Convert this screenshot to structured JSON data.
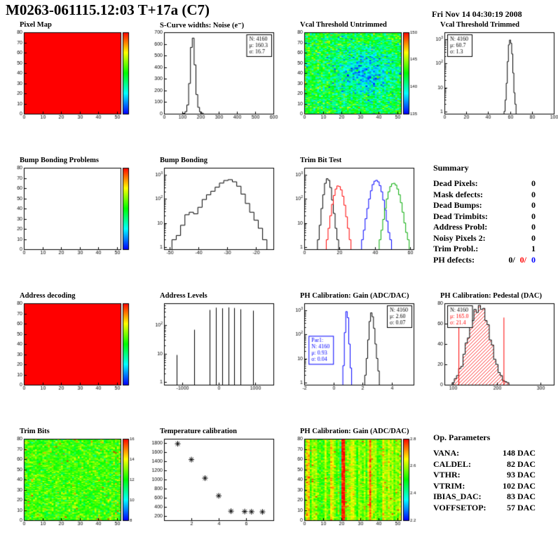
{
  "header": {
    "title": "M0263-061115.12:03 T+17a (C7)",
    "date": "Fri Nov 14 04:30:19 2008"
  },
  "summary": {
    "title": "Summary",
    "rows": [
      {
        "label": "Dead Pixels:",
        "value": "0"
      },
      {
        "label": "Mask defects:",
        "value": "0"
      },
      {
        "label": "Dead Bumps:",
        "value": "0"
      },
      {
        "label": "Dead Trimbits:",
        "value": "0"
      },
      {
        "label": "Address Probl:",
        "value": "0"
      },
      {
        "label": "Noisy Pixels 2:",
        "value": "0"
      },
      {
        "label": "Trim Probl.:",
        "value": "1"
      }
    ],
    "ph_defects": {
      "label": "PH defects:",
      "values": [
        {
          "text": "0/",
          "color": "#000000"
        },
        {
          "text": "0/",
          "color": "#ff0000"
        },
        {
          "text": "0",
          "color": "#0000ff"
        }
      ]
    }
  },
  "op_parameters": {
    "title": "Op. Parameters",
    "rows": [
      {
        "label": "VANA:",
        "value": "148 DAC"
      },
      {
        "label": "CALDEL:",
        "value": "82 DAC"
      },
      {
        "label": "VTHR:",
        "value": "93 DAC"
      },
      {
        "label": "VTRIM:",
        "value": "102 DAC"
      },
      {
        "label": "IBIAS_DAC:",
        "value": "83 DAC"
      },
      {
        "label": "VOFFSETOP:",
        "value": "57 DAC"
      }
    ]
  },
  "chart_data": [
    {
      "title": "Pixel Map",
      "type": "heatmap",
      "xlim": [
        0,
        52
      ],
      "ylim": [
        0,
        80
      ],
      "x_ticks": [
        0,
        10,
        20,
        30,
        40,
        50
      ],
      "y_ticks": [
        0,
        10,
        20,
        30,
        40,
        50,
        60,
        70,
        80
      ],
      "heat": {
        "mode": "flat",
        "color": "#ff0000"
      },
      "colorbar": {
        "labels": []
      }
    },
    {
      "title": "S-Curve widths: Noise (e⁻)",
      "type": "hist",
      "xlim": [
        0,
        600
      ],
      "ylim": [
        0,
        700
      ],
      "x_ticks": [
        0,
        100,
        200,
        300,
        400,
        500,
        600
      ],
      "y_ticks": [
        0,
        100,
        200,
        300,
        400,
        500,
        600,
        700
      ],
      "color": "#000000",
      "pairs": [
        [
          110,
          3
        ],
        [
          120,
          18
        ],
        [
          130,
          75
        ],
        [
          140,
          260
        ],
        [
          150,
          570
        ],
        [
          160,
          650
        ],
        [
          170,
          420
        ],
        [
          180,
          165
        ],
        [
          190,
          55
        ],
        [
          200,
          16
        ],
        [
          210,
          5
        ]
      ],
      "stats_boxes": [
        {
          "pos": "tr",
          "lines": [
            {
              "t": "N: 4160"
            },
            {
              "t": "μ: 160.3"
            },
            {
              "t": "σ: 16.7"
            }
          ]
        }
      ]
    },
    {
      "title": "Vcal Threshold Untrimmed",
      "type": "heatmap",
      "xlim": [
        0,
        52
      ],
      "ylim": [
        0,
        80
      ],
      "x_ticks": [
        0,
        10,
        20,
        30,
        40,
        50
      ],
      "y_ticks": [
        0,
        10,
        20,
        30,
        40,
        50,
        60,
        70,
        80
      ],
      "heat": {
        "mode": "noise",
        "base": 0.47,
        "sigma": 0.12,
        "seed": 7,
        "speckle": 0.01,
        "blob": {
          "cx": 0.63,
          "cy": 0.5,
          "r": 0.22,
          "amp": -0.25
        }
      },
      "colorbar": {
        "labels": [
          135,
          140,
          145,
          150
        ]
      }
    },
    {
      "title": "Vcal Threshold Trimmed",
      "type": "hist",
      "xlim": [
        0,
        100
      ],
      "ylog": true,
      "ylim": [
        0.8,
        2000
      ],
      "x_ticks": [
        0,
        20,
        40,
        60,
        80,
        100
      ],
      "color": "#000000",
      "pairs": [
        [
          55,
          1
        ],
        [
          56,
          3
        ],
        [
          57,
          15
        ],
        [
          58,
          120
        ],
        [
          59,
          600
        ],
        [
          60,
          950
        ],
        [
          61,
          700
        ],
        [
          62,
          250
        ],
        [
          63,
          40
        ],
        [
          64,
          6
        ],
        [
          65,
          2
        ]
      ],
      "stats_boxes": [
        {
          "pos": "tl",
          "lines": [
            {
              "t": "N: 4160"
            },
            {
              "t": "μ: 60.7"
            },
            {
              "t": "σ: 1.3"
            }
          ]
        }
      ]
    },
    {
      "title": "Bump Bonding Problems",
      "type": "heatmap",
      "xlim": [
        0,
        52
      ],
      "ylim": [
        0,
        80
      ],
      "x_ticks": [
        0,
        10,
        20,
        30,
        40,
        50
      ],
      "y_ticks": [
        0,
        10,
        20,
        30,
        40,
        50,
        60,
        70,
        80
      ],
      "heat": {
        "mode": "empty"
      },
      "colorbar": {
        "labels": []
      }
    },
    {
      "title": "Bump Bonding",
      "type": "hist",
      "xlim": [
        -52,
        -14
      ],
      "ylog": true,
      "ylim": [
        0.8,
        2000
      ],
      "x_ticks": [
        -50,
        -40,
        -30,
        -20
      ],
      "color": "#000000",
      "pairs": [
        [
          -48.5,
          2
        ],
        [
          -47,
          3
        ],
        [
          -45.5,
          8
        ],
        [
          -44,
          22
        ],
        [
          -42.5,
          28
        ],
        [
          -41,
          24
        ],
        [
          -39.5,
          45
        ],
        [
          -38,
          95
        ],
        [
          -36.5,
          150
        ],
        [
          -35,
          210
        ],
        [
          -33.5,
          310
        ],
        [
          -32,
          460
        ],
        [
          -30.5,
          590
        ],
        [
          -29,
          640
        ],
        [
          -27.5,
          520
        ],
        [
          -26,
          340
        ],
        [
          -24.5,
          160
        ],
        [
          -23,
          65
        ],
        [
          -21.5,
          28
        ],
        [
          -20,
          13
        ],
        [
          -18.5,
          6
        ],
        [
          -17,
          2
        ]
      ]
    },
    {
      "title": "Trim Bit Test",
      "type": "multi_hist",
      "xlim": [
        0,
        62
      ],
      "ylog": true,
      "ylim": [
        0.8,
        2000
      ],
      "x_ticks": [
        0,
        20,
        40,
        60
      ],
      "series": [
        {
          "color": "#000000",
          "pairs": [
            [
              8,
              2
            ],
            [
              9,
              8
            ],
            [
              10,
              40
            ],
            [
              11,
              150
            ],
            [
              12,
              450
            ],
            [
              13,
              700
            ],
            [
              14,
              600
            ],
            [
              15,
              300
            ],
            [
              16,
              90
            ],
            [
              17,
              25
            ],
            [
              18,
              6
            ],
            [
              19,
              2
            ]
          ]
        },
        {
          "color": "#ff0000",
          "pairs": [
            [
              13,
              2
            ],
            [
              14,
              6
            ],
            [
              15,
              20
            ],
            [
              16,
              60
            ],
            [
              17,
              140
            ],
            [
              18,
              260
            ],
            [
              19,
              350
            ],
            [
              20,
              330
            ],
            [
              21,
              240
            ],
            [
              22,
              130
            ],
            [
              23,
              55
            ],
            [
              24,
              18
            ],
            [
              25,
              6
            ],
            [
              26,
              2
            ]
          ]
        },
        {
          "color": "#0000ff",
          "pairs": [
            [
              33,
              2
            ],
            [
              34,
              5
            ],
            [
              35,
              15
            ],
            [
              36,
              40
            ],
            [
              37,
              100
            ],
            [
              38,
              220
            ],
            [
              39,
              400
            ],
            [
              40,
              550
            ],
            [
              41,
              600
            ],
            [
              42,
              520
            ],
            [
              43,
              360
            ],
            [
              44,
              200
            ],
            [
              45,
              90
            ],
            [
              46,
              35
            ],
            [
              47,
              12
            ],
            [
              48,
              4
            ],
            [
              49,
              2
            ]
          ]
        },
        {
          "color": "#00aa00",
          "pairs": [
            [
              43,
              2
            ],
            [
              44,
              5
            ],
            [
              45,
              14
            ],
            [
              46,
              40
            ],
            [
              47,
              100
            ],
            [
              48,
              200
            ],
            [
              49,
              330
            ],
            [
              50,
              430
            ],
            [
              51,
              450
            ],
            [
              52,
              380
            ],
            [
              53,
              260
            ],
            [
              54,
              150
            ],
            [
              55,
              70
            ],
            [
              56,
              28
            ],
            [
              57,
              10
            ],
            [
              58,
              4
            ],
            [
              59,
              2
            ]
          ]
        }
      ]
    },
    {
      "title": "Address decoding",
      "type": "heatmap",
      "xlim": [
        0,
        52
      ],
      "ylim": [
        0,
        80
      ],
      "x_ticks": [
        0,
        10,
        20,
        30,
        40,
        50
      ],
      "y_ticks": [
        0,
        10,
        20,
        30,
        40,
        50,
        60,
        70,
        80
      ],
      "heat": {
        "mode": "flat",
        "color": "#ff0000"
      },
      "colorbar": {
        "labels": []
      }
    },
    {
      "title": "Address Levels",
      "type": "spikes",
      "xlim": [
        -1500,
        1500
      ],
      "ylog": true,
      "ylim": [
        0.8,
        600
      ],
      "x_ticks": [
        -1000,
        0,
        1000
      ],
      "color": "#000000",
      "pairs": [
        [
          -1150,
          9
        ],
        [
          -680,
          70
        ],
        [
          -250,
          350
        ],
        [
          -80,
          420
        ],
        [
          90,
          400
        ],
        [
          260,
          430
        ],
        [
          430,
          410
        ],
        [
          600,
          370
        ],
        [
          950,
          330
        ]
      ]
    },
    {
      "title": "PH Calibration: Gain (ADC/DAC)",
      "type": "multi_hist",
      "xlim": [
        -2,
        5.5
      ],
      "ylog": true,
      "ylim": [
        0.8,
        2000
      ],
      "x_ticks": [
        -2,
        0,
        2,
        4
      ],
      "series": [
        {
          "color": "#000000",
          "pairs": [
            [
              2.2,
              2
            ],
            [
              2.3,
              10
            ],
            [
              2.4,
              60
            ],
            [
              2.5,
              350
            ],
            [
              2.6,
              800
            ],
            [
              2.7,
              550
            ],
            [
              2.8,
              180
            ],
            [
              2.9,
              40
            ],
            [
              3.0,
              10
            ],
            [
              3.1,
              3
            ]
          ]
        },
        {
          "color": "#0000ff",
          "pairs": [
            [
              0.7,
              5
            ],
            [
              0.8,
              120
            ],
            [
              0.9,
              900
            ],
            [
              1.0,
              500
            ],
            [
              1.1,
              40
            ],
            [
              1.2,
              4
            ]
          ]
        }
      ],
      "stats_boxes": [
        {
          "pos": "tr",
          "lines": [
            {
              "t": "N: 4160"
            },
            {
              "t": "μ: 2.60"
            },
            {
              "t": "σ: 0.07"
            }
          ]
        },
        {
          "pos": [
            0.04,
            0.4
          ],
          "border": "#0000ff",
          "lines": [
            {
              "t": "Par1:",
              "c": "#0000ff"
            },
            {
              "t": "N: 4160",
              "c": "#0000ff"
            },
            {
              "t": "μ: 0.93",
              "c": "#0000ff"
            },
            {
              "t": "σ: 0.04",
              "c": "#0000ff"
            }
          ]
        }
      ]
    },
    {
      "title": "PH Calibration: Pedestal (DAC)",
      "type": "hist",
      "xlim": [
        80,
        330
      ],
      "ylim": [
        0,
        80
      ],
      "x_ticks": [
        100,
        200,
        300
      ],
      "y_ticks": [
        0,
        20,
        40,
        60,
        80
      ],
      "color": "#000000",
      "fill": "hatch-red",
      "pairs": [
        [
          100,
          2
        ],
        [
          105,
          6
        ],
        [
          110,
          9
        ],
        [
          115,
          16
        ],
        [
          120,
          18
        ],
        [
          125,
          30
        ],
        [
          130,
          41
        ],
        [
          135,
          46
        ],
        [
          140,
          61
        ],
        [
          145,
          63
        ],
        [
          150,
          74
        ],
        [
          155,
          71
        ],
        [
          160,
          78
        ],
        [
          165,
          74
        ],
        [
          170,
          75
        ],
        [
          175,
          63
        ],
        [
          180,
          59
        ],
        [
          185,
          44
        ],
        [
          190,
          39
        ],
        [
          195,
          25
        ],
        [
          200,
          20
        ],
        [
          205,
          12
        ],
        [
          210,
          9
        ],
        [
          215,
          4
        ],
        [
          220,
          3
        ],
        [
          225,
          2
        ]
      ],
      "vlines": [
        {
          "x": 113,
          "h": 66,
          "color": "#ff0000"
        },
        {
          "x": 216,
          "h": 66,
          "color": "#ff0000"
        }
      ],
      "stats_boxes": [
        {
          "pos": "tl",
          "lines": [
            {
              "t": "N: 4160"
            },
            {
              "t": "μ: 165.0",
              "c": "#ff0000"
            },
            {
              "t": "σ: 21.4",
              "c": "#ff0000"
            }
          ]
        }
      ]
    },
    {
      "title": "Trim Bits",
      "type": "heatmap",
      "xlim": [
        0,
        52
      ],
      "ylim": [
        0,
        80
      ],
      "x_ticks": [
        0,
        10,
        20,
        30,
        40,
        50
      ],
      "y_ticks": [
        0,
        10,
        20,
        30,
        40,
        50,
        60,
        70,
        80
      ],
      "heat": {
        "mode": "noise",
        "base": 0.55,
        "sigma": 0.08,
        "seed": 11,
        "speckle": 0.03
      },
      "colorbar": {
        "labels": [
          8,
          10,
          12,
          14,
          16
        ]
      }
    },
    {
      "title": "Temperature calibration",
      "type": "scatter",
      "xlim": [
        0,
        8
      ],
      "ylim": [
        100,
        1900
      ],
      "x_ticks": [
        2,
        4,
        6
      ],
      "y_ticks": [
        200,
        400,
        600,
        800,
        1000,
        1200,
        1400,
        1600,
        1800
      ],
      "color": "#000000",
      "points": [
        [
          1,
          1790
        ],
        [
          2,
          1440
        ],
        [
          3,
          1030
        ],
        [
          4,
          640
        ],
        [
          4.9,
          300
        ],
        [
          5.9,
          292
        ],
        [
          6.4,
          288
        ],
        [
          7.2,
          285
        ]
      ]
    },
    {
      "title": "PH Calibration: Gain (ADC/DAC)",
      "type": "heatmap",
      "xlim": [
        0,
        52
      ],
      "ylim": [
        0,
        80
      ],
      "x_ticks": [
        0,
        10,
        20,
        30,
        40,
        50
      ],
      "y_ticks": [
        0,
        10,
        20,
        30,
        40,
        50,
        60,
        70,
        80
      ],
      "heat": {
        "mode": "noise",
        "base": 0.62,
        "sigma": 0.06,
        "seed": 13,
        "speckle": 0.02,
        "col_sigma": 0.07,
        "hot_cols": [
          20,
          21,
          35
        ]
      },
      "colorbar": {
        "labels": [
          2.2,
          2.4,
          2.6,
          2.8
        ]
      }
    }
  ]
}
